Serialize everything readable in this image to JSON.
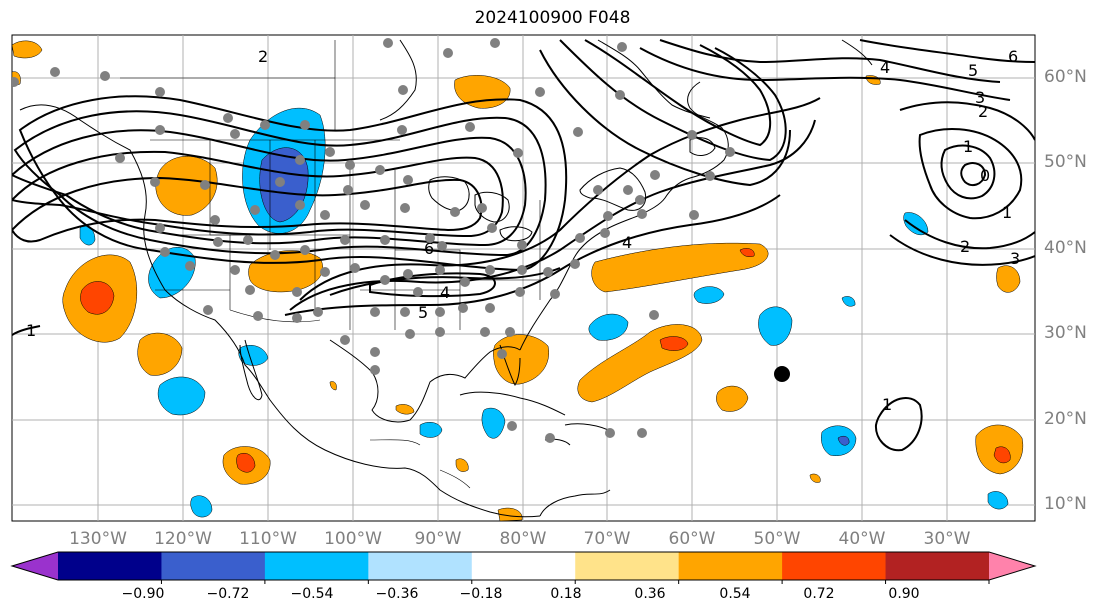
{
  "title": "2024100900 F048",
  "map": {
    "lat_labels": [
      "60°N",
      "50°N",
      "40°N",
      "30°N",
      "20°N",
      "10°N"
    ],
    "lon_labels": [
      "130°W",
      "120°W",
      "110°W",
      "100°W",
      "90°W",
      "80°W",
      "70°W",
      "60°W",
      "50°W",
      "40°W",
      "30°W"
    ],
    "contour_labels": [
      "6",
      "5",
      "4",
      "3",
      "2",
      "1",
      "0",
      "1",
      "2",
      "3",
      "4",
      "5",
      "6",
      "4",
      "2",
      "1",
      "1"
    ],
    "marker": "black-dot"
  },
  "colorbar": {
    "ticks": [
      "−0.90",
      "−0.72",
      "−0.54",
      "−0.36",
      "−0.18",
      "0.18",
      "0.36",
      "0.54",
      "0.72",
      "0.90"
    ],
    "colors": [
      "#9a32cd",
      "#00008b",
      "#3a5fcd",
      "#00bfff",
      "#b0e2ff",
      "#ffffff",
      "#ffe38a",
      "#ffa500",
      "#ff4500",
      "#b22222",
      "#ff82ab"
    ]
  }
}
